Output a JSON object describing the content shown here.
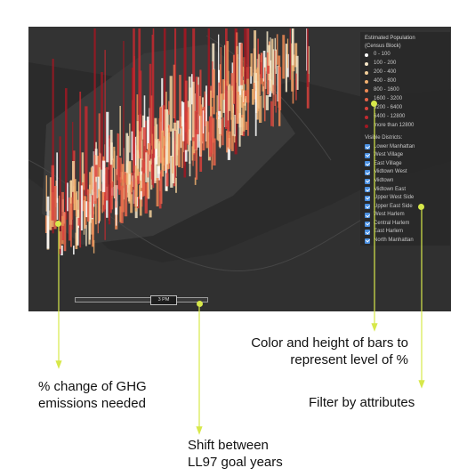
{
  "legend": {
    "population_title_line1": "Estimated Population",
    "population_title_line2": "(Census Block)",
    "population_ranges": [
      {
        "label": "0 - 100",
        "color": "#ffffff"
      },
      {
        "label": "100 - 200",
        "color": "#f5e6c8"
      },
      {
        "label": "200 - 400",
        "color": "#f2cf9a"
      },
      {
        "label": "400 - 800",
        "color": "#f0b070"
      },
      {
        "label": "800 - 1600",
        "color": "#ee8a55"
      },
      {
        "label": "1600 - 3200",
        "color": "#e8654a"
      },
      {
        "label": "3200 - 6400",
        "color": "#d9423c"
      },
      {
        "label": "6400 - 12800",
        "color": "#c22a30"
      },
      {
        "label": "more than 12800",
        "color": "#a01822"
      }
    ],
    "districts_title": "Visible Districts:",
    "districts": [
      "Lower Manhattan",
      "West Village",
      "East Village",
      "Midtown West",
      "Midtown",
      "Midtown East",
      "Upper West Side",
      "Upper East Side",
      "West Harlem",
      "Central Harlem",
      "East Harlem",
      "North Manhattan"
    ]
  },
  "time_slider": {
    "value_label": "3 PM"
  },
  "annotations": {
    "bars_color_height": "Color and height of bars to\nrepresent level of %",
    "ghg_change": "% change of GHG\nemissions needed",
    "filter": "Filter by attributes",
    "shift_years": "Shift between\nLL97 goal years"
  },
  "colors": {
    "accent": "#d7e84a",
    "map_bg": "#2b2b2b",
    "checkbox": "#4a90e2"
  }
}
